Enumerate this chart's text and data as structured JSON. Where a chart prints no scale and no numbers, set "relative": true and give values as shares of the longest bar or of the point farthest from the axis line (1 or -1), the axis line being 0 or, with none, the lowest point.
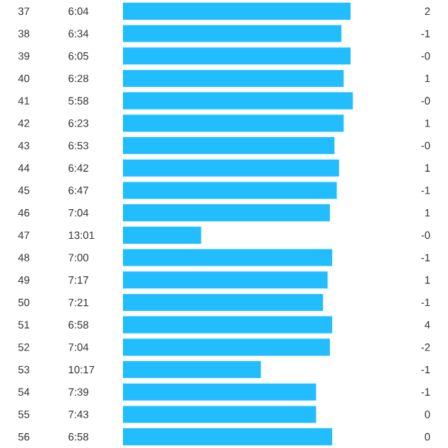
{
  "chart_data": {
    "type": "bar",
    "orientation": "horizontal",
    "relative": true,
    "color": "#22bdff",
    "categories": [
      "37",
      "38",
      "39",
      "40",
      "41",
      "42",
      "43",
      "44",
      "45",
      "46",
      "47",
      "48",
      "49",
      "50",
      "51",
      "52",
      "53",
      "54",
      "55",
      "56"
    ],
    "values": [
      0.99,
      0.95,
      0.99,
      0.96,
      1,
      0.96,
      0.92,
      0.94,
      0.93,
      0.9,
      0.34,
      0.91,
      0.89,
      0.87,
      0.91,
      0.9,
      0.6,
      0.84,
      0.84,
      0.91
    ],
    "annotations": [
      "6:04",
      "2",
      "6:34",
      "-1",
      "6:05",
      "-0",
      "6:28",
      "1",
      "5:58",
      "-0",
      "6:23",
      "1",
      "6:53",
      "-0",
      "6:42",
      "1",
      "6:47",
      "-1",
      "7:04",
      "1",
      "13:01",
      "-0",
      "7:00",
      "-1",
      "7:17",
      "1",
      "7:21",
      "-1",
      "6:58",
      "4",
      "7:04",
      "-2",
      "10:17",
      "-1",
      "7:39",
      "-1",
      "7:43",
      "0",
      "6:58",
      "0"
    ]
  }
}
